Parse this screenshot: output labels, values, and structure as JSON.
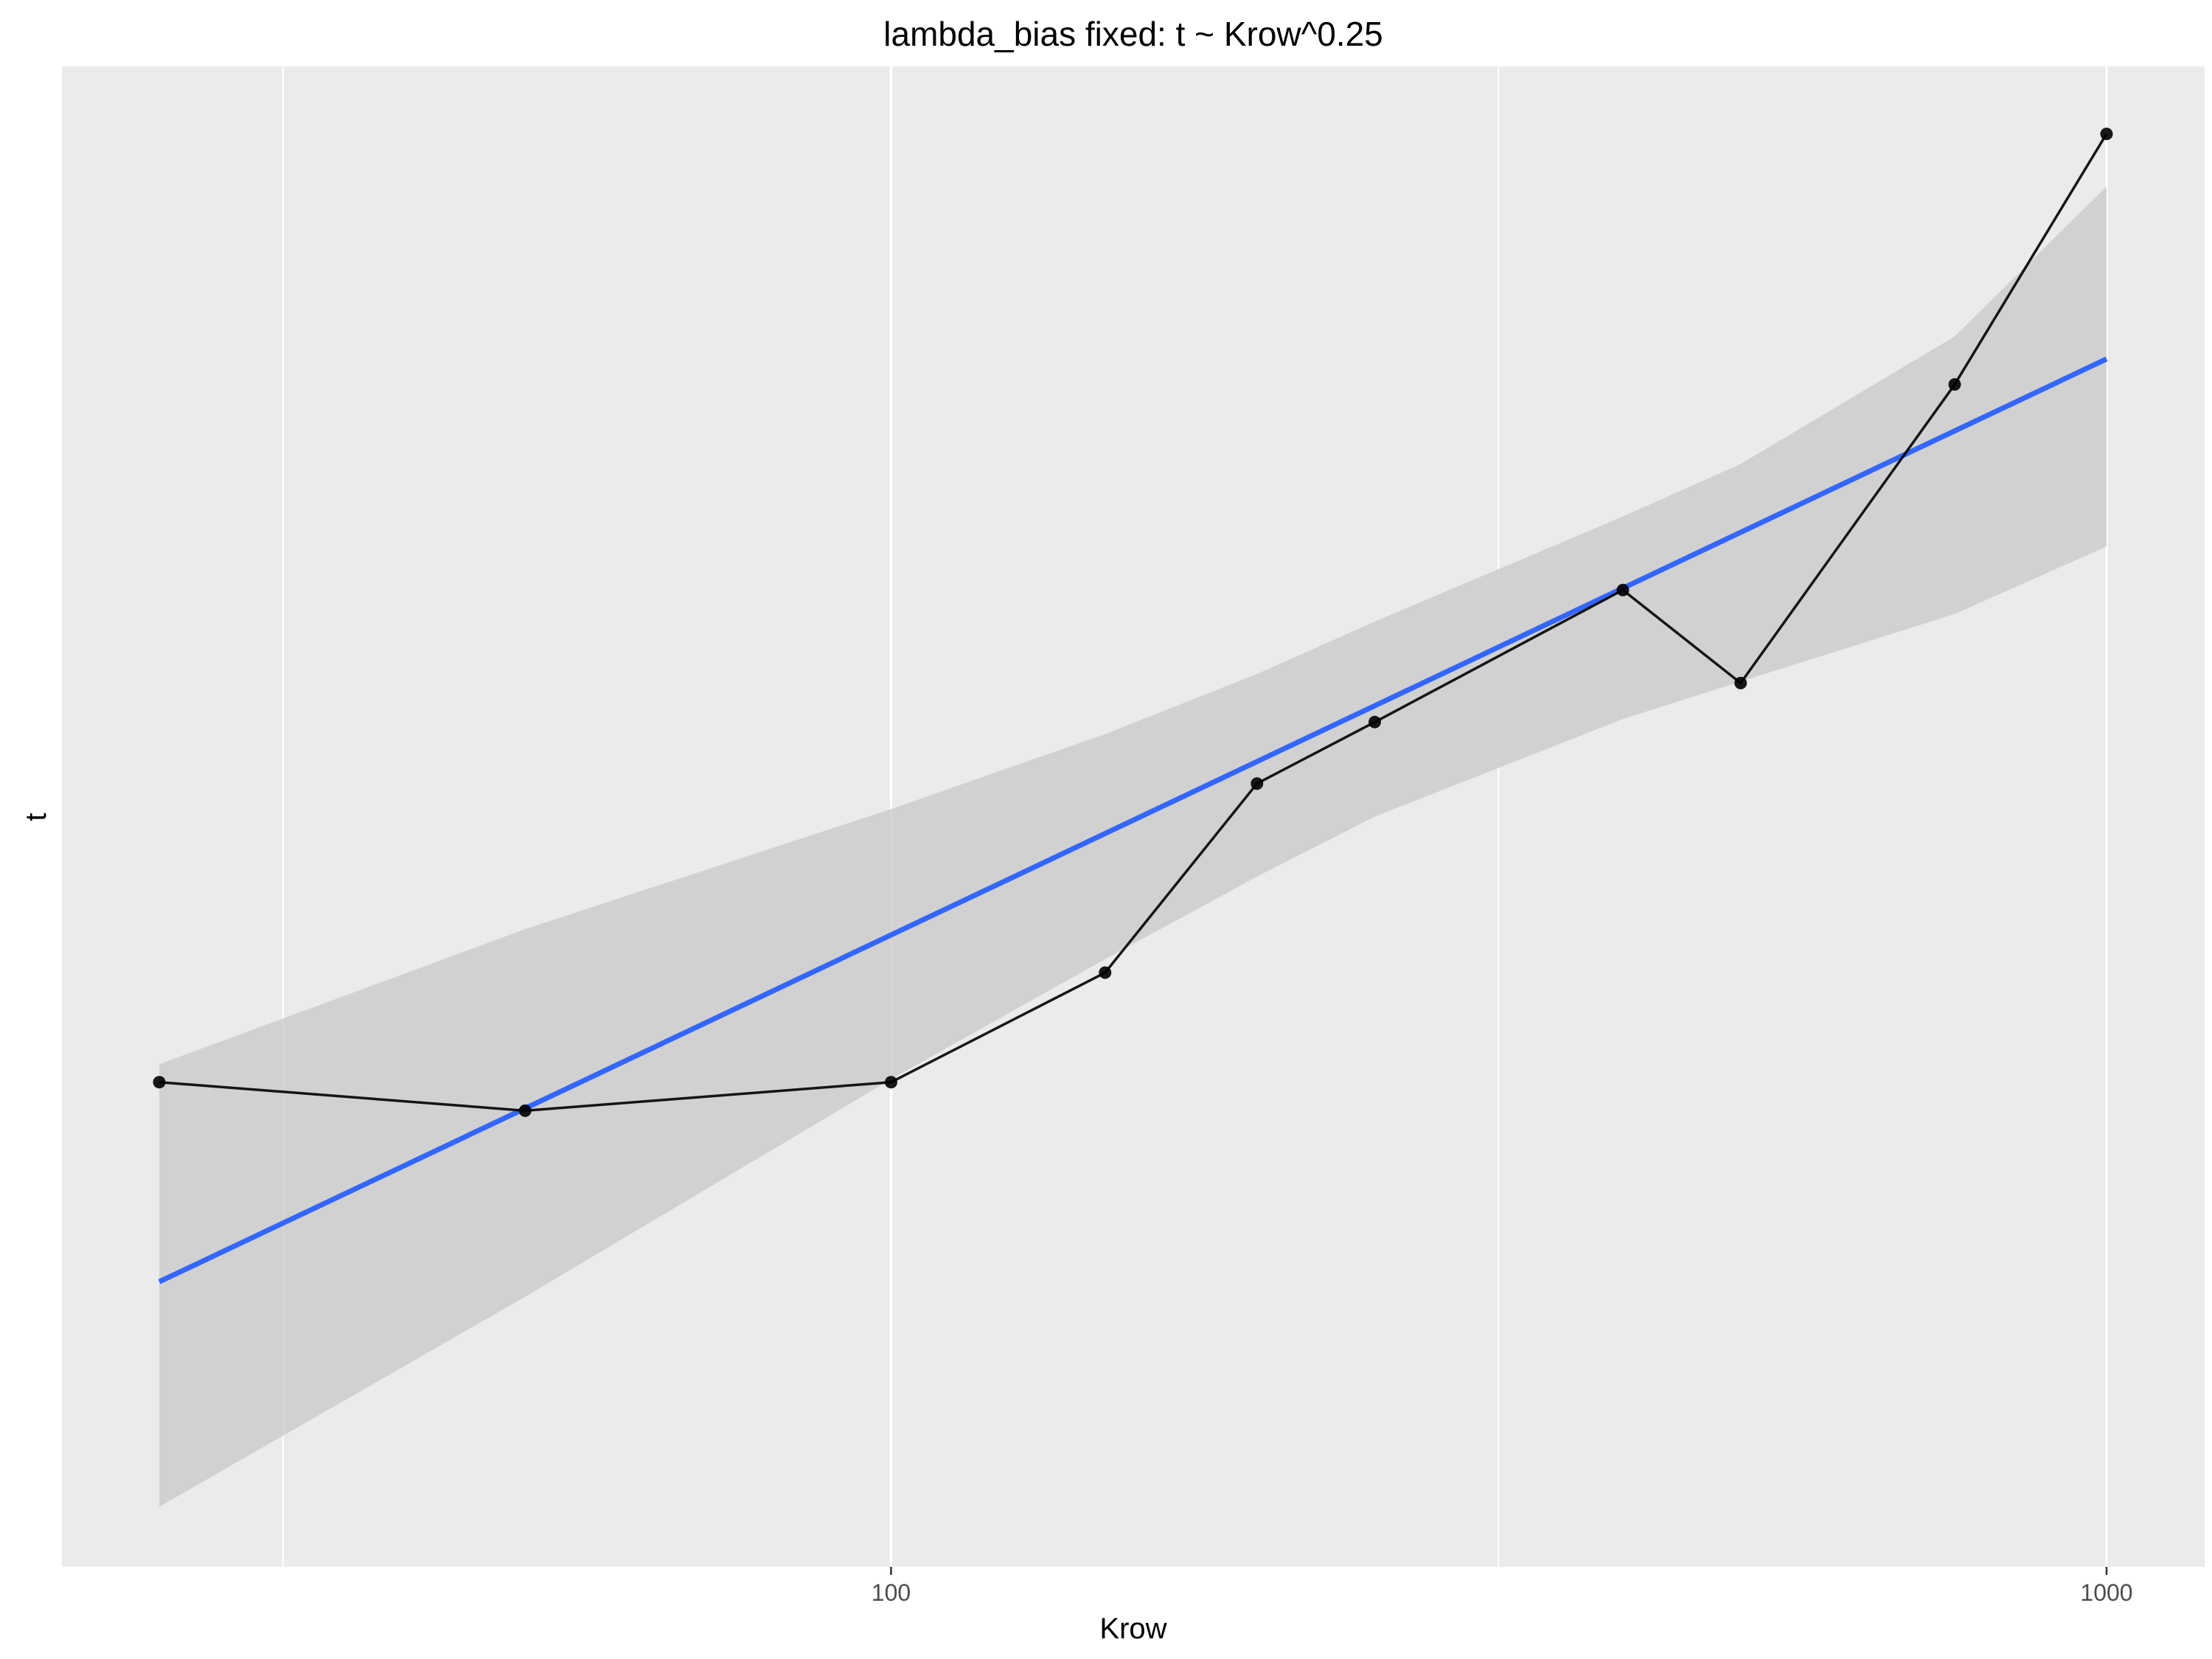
{
  "chart_data": {
    "type": "line",
    "title": "lambda_bias fixed: t ~ Krow^0.25",
    "xlabel": "Krow",
    "ylabel": "t",
    "x_scale": "log10",
    "xlim": [
      25,
      1000
    ],
    "ylim": [
      0,
      100
    ],
    "x_ticks": [
      {
        "value": 100,
        "label": "100"
      },
      {
        "value": 1000,
        "label": "1000"
      }
    ],
    "x_minor_gridlines": [
      31.6,
      316
    ],
    "y_ticks": [],
    "grid": true,
    "legend": "none",
    "series": [
      {
        "type": "line-with-points",
        "color": "#000000",
        "x": [
          25,
          50,
          100,
          150,
          200,
          250,
          400,
          500,
          750,
          1000
        ],
        "y": [
          32.3,
          30.4,
          32.3,
          39.6,
          52.2,
          56.3,
          65.1,
          58.9,
          78.8,
          95.5
        ]
      },
      {
        "type": "fit-line",
        "color": "#3366FF",
        "x": [
          25,
          1000
        ],
        "y": [
          19.0,
          80.5
        ]
      }
    ],
    "confidence_band": {
      "color": "#cccccc",
      "x": [
        25,
        50,
        100,
        150,
        200,
        250,
        400,
        500,
        750,
        1000
      ],
      "lower": [
        4.0,
        18.0,
        32.5,
        40.5,
        46.0,
        50.0,
        56.5,
        59.0,
        63.5,
        68.0
      ],
      "upper": [
        33.5,
        42.5,
        50.5,
        55.5,
        59.5,
        63.0,
        70.0,
        73.5,
        82.0,
        92.0
      ]
    },
    "colors": {
      "panel_background": "#EBEBEB",
      "gridline": "#FFFFFF",
      "page_background": "#FFFFFF"
    }
  }
}
